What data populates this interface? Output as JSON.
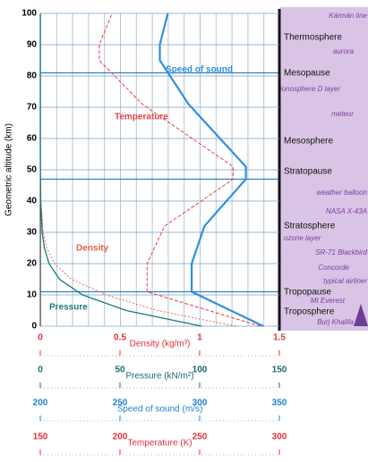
{
  "chart_data": {
    "type": "line",
    "ylabel": "Geometric altitude (km)",
    "ylim": [
      0,
      100
    ],
    "yticks": [
      0,
      10,
      20,
      30,
      40,
      50,
      60,
      70,
      80,
      90,
      100
    ],
    "grid": true,
    "x_axes": [
      {
        "label": "Density (kg/m³)",
        "lim": [
          0,
          1.5
        ],
        "ticks": [
          0,
          0.5,
          1,
          1.5
        ],
        "color": "#e0303a"
      },
      {
        "label": "Pressure (kN/m²)",
        "lim": [
          0,
          150
        ],
        "ticks": [
          0,
          50,
          100,
          150
        ],
        "color": "#1a6a6a"
      },
      {
        "label": "Speed of sound (m/s)",
        "lim": [
          200,
          350
        ],
        "ticks": [
          200,
          250,
          300,
          350
        ],
        "color": "#1f7fd0"
      },
      {
        "label": "Temperature (K)",
        "lim": [
          150,
          300
        ],
        "ticks": [
          150,
          200,
          250,
          300
        ],
        "color": "#e0303a"
      }
    ],
    "series": [
      {
        "name": "Speed of sound",
        "color": "#2f8fe0",
        "x_axis": 2,
        "x": [
          340,
          295,
          295,
          303,
          329,
          329,
          293,
          275,
          275,
          280
        ],
        "y": [
          0,
          11,
          20,
          32,
          47,
          51,
          71,
          85,
          90,
          100
        ]
      },
      {
        "name": "Temperature",
        "color": "#e8404a",
        "x_axis": 3,
        "x": [
          288,
          217,
          217,
          228,
          271,
          271,
          214,
          187,
          187,
          195
        ],
        "y": [
          0,
          11,
          20,
          32,
          47,
          51,
          71,
          85,
          90,
          100
        ]
      },
      {
        "name": "Density",
        "color": "#e0604a",
        "x_axis": 0,
        "x": [
          1.225,
          0.736,
          0.414,
          0.195,
          0.089,
          0.04,
          0.018,
          0.004,
          0.001,
          0.0003,
          2e-05,
          6e-07
        ],
        "y": [
          0,
          5,
          10,
          15,
          20,
          25,
          30,
          40,
          50,
          60,
          80,
          100
        ]
      },
      {
        "name": "Pressure",
        "color": "#1a7a7a",
        "x_axis": 1,
        "x": [
          101.3,
          54,
          26.5,
          12.1,
          5.5,
          2.5,
          1.2,
          0.29,
          0.08,
          0.02,
          0.001,
          3e-05
        ],
        "y": [
          0,
          5,
          10,
          15,
          20,
          25,
          30,
          40,
          50,
          60,
          80,
          100
        ]
      }
    ],
    "layers": [
      "Thermosphere",
      "Mesopause",
      "Mesosphere",
      "Stratopause",
      "Stratosphere",
      "Tropopause",
      "Troposphere"
    ],
    "examples": [
      "Kármán line",
      "aurora",
      "ionosphere D layer",
      "meteor",
      "weather balloon",
      "NASA X-43A",
      "ozone layer",
      "SR-71 Blackbird",
      "Concorde",
      "typical airliner",
      "Mt Everest",
      "Burj Khalifa"
    ]
  }
}
